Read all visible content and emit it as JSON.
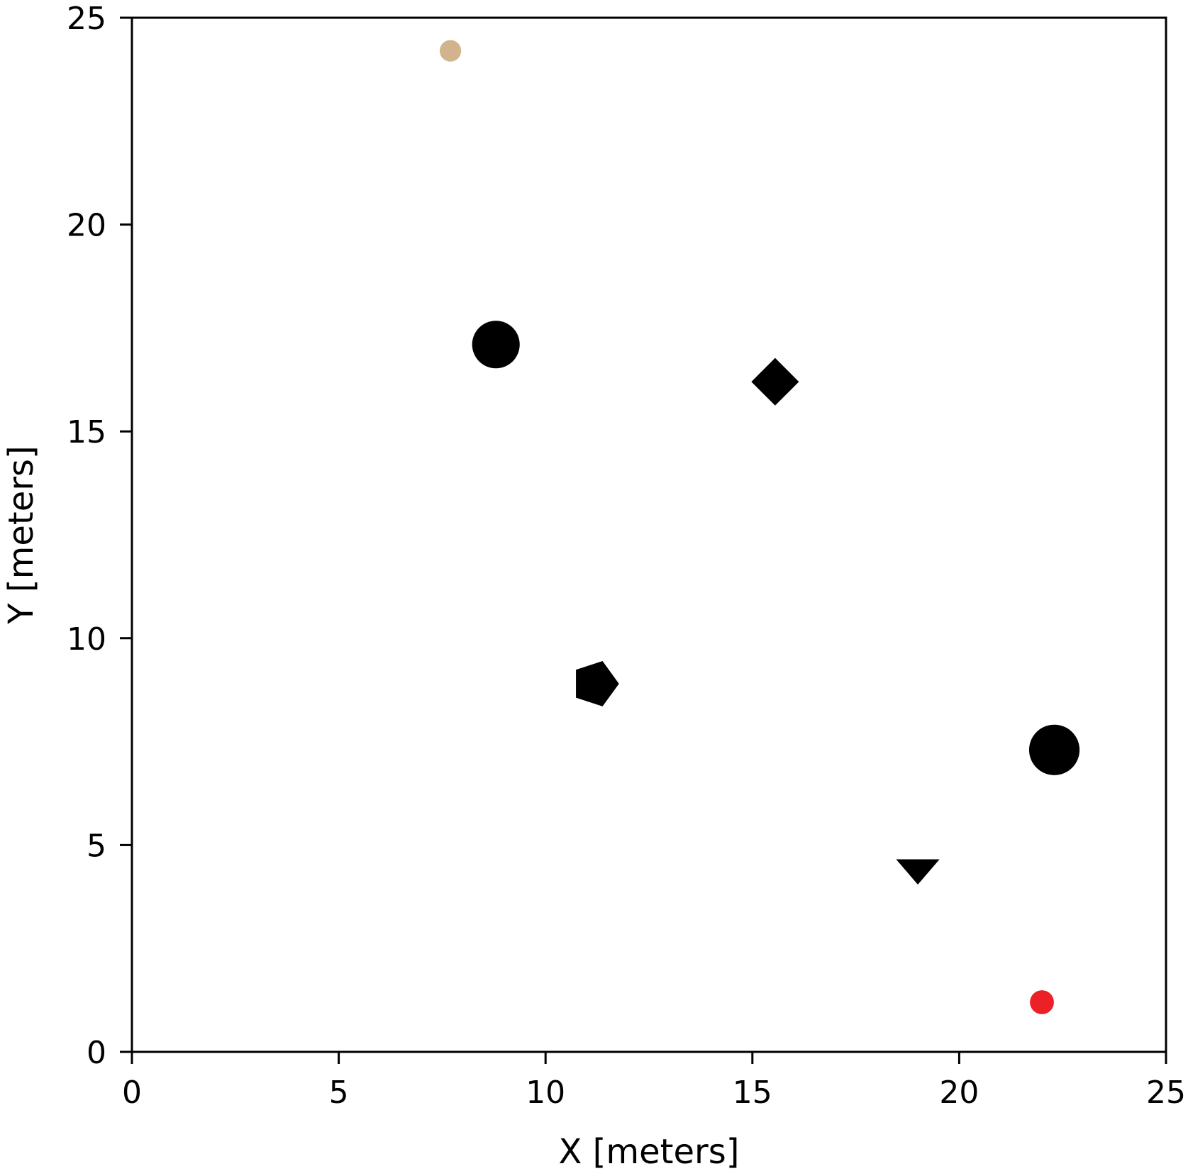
{
  "chart_data": {
    "type": "scatter",
    "title": "",
    "xlabel": "X [meters]",
    "ylabel": "Y [meters]",
    "xlim": [
      0,
      25
    ],
    "ylim": [
      0,
      25
    ],
    "xticks": [
      "0",
      "5",
      "10",
      "15",
      "20",
      "25"
    ],
    "yticks": [
      "0",
      "5",
      "10",
      "15",
      "20",
      "25"
    ],
    "grid": false,
    "legend": "none",
    "points": [
      {
        "x": 7.7,
        "y": 24.2,
        "marker": "circle",
        "size": 0.52,
        "color": "#d2b48c"
      },
      {
        "x": 8.8,
        "y": 17.1,
        "marker": "circle",
        "size": 1.15,
        "color": "#000000"
      },
      {
        "x": 15.55,
        "y": 16.2,
        "marker": "diamond",
        "size": 1.15,
        "color": "#000000"
      },
      {
        "x": 11.2,
        "y": 8.9,
        "marker": "pentagon",
        "size": 1.15,
        "color": "#000000"
      },
      {
        "x": 22.3,
        "y": 7.3,
        "marker": "circle",
        "size": 1.22,
        "color": "#000000"
      },
      {
        "x": 19.0,
        "y": 4.35,
        "marker": "triangle-down",
        "size": 1.05,
        "color": "#000000"
      },
      {
        "x": 22.0,
        "y": 1.2,
        "marker": "circle",
        "size": 0.58,
        "color": "#ec2127"
      }
    ]
  }
}
